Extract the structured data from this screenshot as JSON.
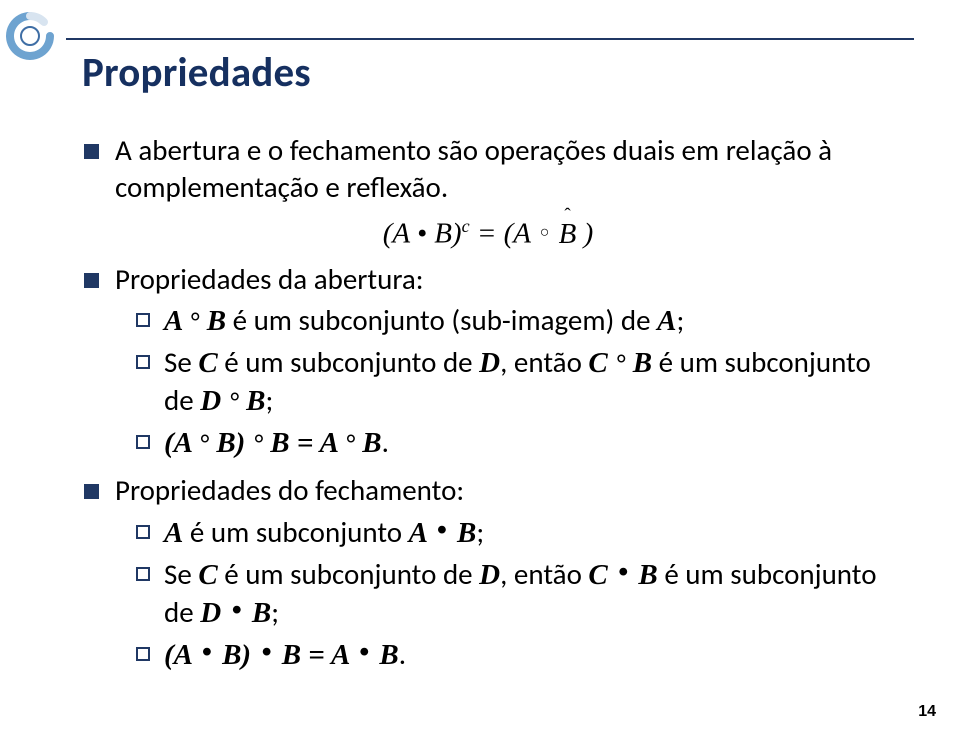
{
  "slide": {
    "title": "Propriedades",
    "title_color": "#163060",
    "rule_color": "#203864",
    "title_fontsize": 41,
    "body_fontsize": 29,
    "bullet_square_color": "#203864",
    "bullet_box_border": "#203864",
    "page_number": "14",
    "logo": {
      "outer_color": "#6ea3d0",
      "inner_color": "#ffffff",
      "accent_color": "#3f6ea5"
    },
    "items": [
      {
        "level": 1,
        "text": "A abertura e o fechamento são operações duais em relação à complementação e reflexão."
      },
      {
        "formula_html": "(A • B)<span class='sup'>c</span> = (A <span class='ring'>○</span> <span class='hat-wrap'><span class='hat'>ˆ</span>B</span> )"
      },
      {
        "level": 1,
        "text": "Propriedades da abertura:"
      },
      {
        "level": 2,
        "html": "<span class='em-it'>A <span class='deg'>°</span> B</span> é um subconjunto (sub-imagem) de <span class='em-it'>A</span>;"
      },
      {
        "level": 2,
        "html": "Se <span class='em-it'>C</span> é um subconjunto de <span class='em-it'>D</span>, então <span class='em-it'>C <span class='deg'>°</span> B</span> é um subconjunto de <span class='em-it'>D <span class='deg'>°</span> B</span>;"
      },
      {
        "level": 2,
        "html": "<span class='em-it'>(A <span class='deg'>°</span> B) <span class='deg'>°</span> B = A <span class='deg'>°</span> B</span>."
      },
      {
        "level": 1,
        "text": "Propriedades do fechamento:"
      },
      {
        "level": 2,
        "html": "<span class='em-it'>A</span> é um subconjunto <span class='em-it'>A <span class='dot'>•</span> B</span>;"
      },
      {
        "level": 2,
        "html": "Se <span class='em-it'>C</span> é um subconjunto de <span class='em-it'>D</span>, então <span class='em-it'>C <span class='dot'>•</span> B</span> é um subconjunto de <span class='em-it'>D <span class='dot'>•</span> B</span>;"
      },
      {
        "level": 2,
        "html": "<span class='em-it'>(A <span class='dot'>•</span> B) <span class='dot'>•</span> B = A <span class='dot'>•</span> B</span>."
      }
    ]
  }
}
